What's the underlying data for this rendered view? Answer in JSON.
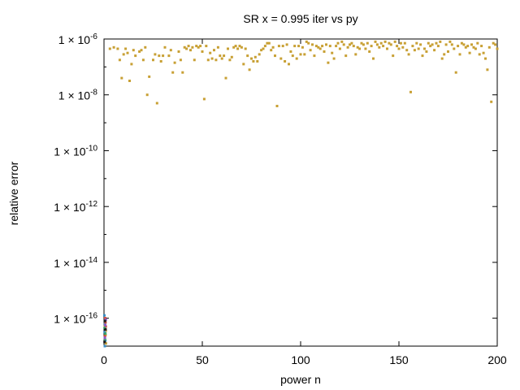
{
  "chart_data": {
    "type": "scatter",
    "title": "SR x = 0.995 iter vs py",
    "xlabel": "power n",
    "ylabel": "relative error",
    "xlim": [
      0,
      200
    ],
    "ylim_log10": [
      -17,
      -6
    ],
    "y_scale": "log",
    "x_ticks": [
      {
        "value": 0,
        "label": "0"
      },
      {
        "value": 50,
        "label": "50"
      },
      {
        "value": 100,
        "label": "100"
      },
      {
        "value": 150,
        "label": "150"
      },
      {
        "value": 200,
        "label": "200"
      }
    ],
    "y_ticks": [
      {
        "exp": -6,
        "label": "1 × 10",
        "sup": "-6"
      },
      {
        "exp": -8,
        "label": "1 × 10",
        "sup": "-8"
      },
      {
        "exp": -10,
        "label": "1 × 10",
        "sup": "-10"
      },
      {
        "exp": -12,
        "label": "1 × 10",
        "sup": "-12"
      },
      {
        "exp": -14,
        "label": "1 × 10",
        "sup": "-14"
      },
      {
        "exp": -16,
        "label": "1 × 10",
        "sup": "-16"
      }
    ],
    "grid": false,
    "legend": "none",
    "series": [
      {
        "color": "#c8a034",
        "points": [
          [
            3,
            -6.35
          ],
          [
            5,
            -6.3
          ],
          [
            7,
            -6.35
          ],
          [
            8,
            -6.75
          ],
          [
            9,
            -7.4
          ],
          [
            10,
            -6.55
          ],
          [
            11,
            -6.35
          ],
          [
            12,
            -6.5
          ],
          [
            13,
            -7.5
          ],
          [
            14,
            -6.9
          ],
          [
            15,
            -6.4
          ],
          [
            16,
            -6.6
          ],
          [
            18,
            -6.45
          ],
          [
            19,
            -6.4
          ],
          [
            20,
            -6.75
          ],
          [
            21,
            -6.3
          ],
          [
            22,
            -8.0
          ],
          [
            23,
            -7.35
          ],
          [
            25,
            -6.75
          ],
          [
            26,
            -6.55
          ],
          [
            27,
            -8.3
          ],
          [
            28,
            -6.6
          ],
          [
            29,
            -6.8
          ],
          [
            30,
            -6.6
          ],
          [
            31,
            -6.3
          ],
          [
            33,
            -6.6
          ],
          [
            34,
            -6.4
          ],
          [
            35,
            -7.2
          ],
          [
            36,
            -6.85
          ],
          [
            38,
            -6.45
          ],
          [
            39,
            -6.75
          ],
          [
            40,
            -7.2
          ],
          [
            41,
            -6.3
          ],
          [
            42,
            -6.35
          ],
          [
            43,
            -6.25
          ],
          [
            44,
            -6.4
          ],
          [
            45,
            -6.3
          ],
          [
            46,
            -6.75
          ],
          [
            47,
            -6.25
          ],
          [
            48,
            -6.3
          ],
          [
            49,
            -6.25
          ],
          [
            50,
            -6.45
          ],
          [
            51,
            -8.15
          ],
          [
            52,
            -6.25
          ],
          [
            53,
            -6.75
          ],
          [
            54,
            -6.5
          ],
          [
            55,
            -6.7
          ],
          [
            56,
            -6.4
          ],
          [
            57,
            -6.75
          ],
          [
            58,
            -6.3
          ],
          [
            59,
            -6.6
          ],
          [
            60,
            -6.7
          ],
          [
            61,
            -6.6
          ],
          [
            62,
            -7.4
          ],
          [
            63,
            -6.35
          ],
          [
            64,
            -6.75
          ],
          [
            65,
            -6.65
          ],
          [
            66,
            -6.3
          ],
          [
            67,
            -6.25
          ],
          [
            68,
            -6.35
          ],
          [
            69,
            -6.25
          ],
          [
            70,
            -6.3
          ],
          [
            71,
            -6.9
          ],
          [
            72,
            -6.35
          ],
          [
            73,
            -6.6
          ],
          [
            74,
            -7.1
          ],
          [
            75,
            -6.7
          ],
          [
            76,
            -6.8
          ],
          [
            77,
            -6.65
          ],
          [
            78,
            -6.8
          ],
          [
            79,
            -6.55
          ],
          [
            80,
            -6.4
          ],
          [
            81,
            -6.35
          ],
          [
            82,
            -6.25
          ],
          [
            83,
            -6.15
          ],
          [
            84,
            -6.15
          ],
          [
            85,
            -6.4
          ],
          [
            86,
            -6.3
          ],
          [
            87,
            -6.6
          ],
          [
            88,
            -8.4
          ],
          [
            89,
            -6.25
          ],
          [
            90,
            -6.7
          ],
          [
            91,
            -6.25
          ],
          [
            92,
            -6.8
          ],
          [
            93,
            -6.2
          ],
          [
            94,
            -6.9
          ],
          [
            95,
            -6.45
          ],
          [
            96,
            -6.6
          ],
          [
            97,
            -6.25
          ],
          [
            98,
            -6.7
          ],
          [
            99,
            -6.25
          ],
          [
            100,
            -6.55
          ],
          [
            101,
            -6.3
          ],
          [
            102,
            -6.55
          ],
          [
            103,
            -6.1
          ],
          [
            104,
            -6.15
          ],
          [
            105,
            -6.4
          ],
          [
            106,
            -6.2
          ],
          [
            107,
            -6.6
          ],
          [
            108,
            -6.25
          ],
          [
            109,
            -6.3
          ],
          [
            110,
            -6.35
          ],
          [
            111,
            -6.25
          ],
          [
            112,
            -6.45
          ],
          [
            113,
            -6.2
          ],
          [
            114,
            -6.85
          ],
          [
            115,
            -6.25
          ],
          [
            116,
            -6.5
          ],
          [
            117,
            -6.7
          ],
          [
            118,
            -6.25
          ],
          [
            119,
            -6.15
          ],
          [
            120,
            -6.35
          ],
          [
            121,
            -6.1
          ],
          [
            122,
            -6.2
          ],
          [
            123,
            -6.6
          ],
          [
            124,
            -6.3
          ],
          [
            125,
            -6.2
          ],
          [
            126,
            -6.15
          ],
          [
            127,
            -6.25
          ],
          [
            128,
            -6.55
          ],
          [
            129,
            -6.3
          ],
          [
            130,
            -6.35
          ],
          [
            131,
            -6.15
          ],
          [
            132,
            -6.2
          ],
          [
            133,
            -6.35
          ],
          [
            134,
            -6.15
          ],
          [
            135,
            -6.45
          ],
          [
            136,
            -6.25
          ],
          [
            137,
            -6.7
          ],
          [
            138,
            -6.1
          ],
          [
            139,
            -6.2
          ],
          [
            140,
            -6.3
          ],
          [
            141,
            -6.15
          ],
          [
            142,
            -6.25
          ],
          [
            143,
            -6.1
          ],
          [
            144,
            -6.35
          ],
          [
            145,
            -6.15
          ],
          [
            146,
            -6.2
          ],
          [
            147,
            -6.6
          ],
          [
            148,
            -6.1
          ],
          [
            149,
            -6.25
          ],
          [
            150,
            -6.35
          ],
          [
            151,
            -6.15
          ],
          [
            152,
            -6.3
          ],
          [
            153,
            -6.15
          ],
          [
            154,
            -6.4
          ],
          [
            155,
            -6.55
          ],
          [
            156,
            -7.9
          ],
          [
            157,
            -6.25
          ],
          [
            158,
            -6.4
          ],
          [
            159,
            -6.15
          ],
          [
            160,
            -6.35
          ],
          [
            161,
            -6.2
          ],
          [
            162,
            -6.6
          ],
          [
            163,
            -6.35
          ],
          [
            164,
            -6.45
          ],
          [
            165,
            -6.15
          ],
          [
            166,
            -6.25
          ],
          [
            167,
            -6.2
          ],
          [
            168,
            -6.4
          ],
          [
            169,
            -6.15
          ],
          [
            170,
            -6.25
          ],
          [
            171,
            -6.1
          ],
          [
            172,
            -6.7
          ],
          [
            173,
            -6.55
          ],
          [
            174,
            -6.2
          ],
          [
            175,
            -6.45
          ],
          [
            176,
            -6.1
          ],
          [
            177,
            -6.2
          ],
          [
            178,
            -6.35
          ],
          [
            179,
            -7.2
          ],
          [
            180,
            -6.25
          ],
          [
            181,
            -6.55
          ],
          [
            182,
            -6.15
          ],
          [
            183,
            -6.2
          ],
          [
            184,
            -6.3
          ],
          [
            185,
            -6.25
          ],
          [
            186,
            -6.5
          ],
          [
            187,
            -6.2
          ],
          [
            188,
            -6.3
          ],
          [
            189,
            -6.35
          ],
          [
            190,
            -6.15
          ],
          [
            191,
            -6.55
          ],
          [
            192,
            -6.25
          ],
          [
            193,
            -6.5
          ],
          [
            194,
            -6.7
          ],
          [
            195,
            -7.1
          ],
          [
            196,
            -6.3
          ],
          [
            197,
            -8.25
          ],
          [
            198,
            -6.15
          ],
          [
            199,
            -6.2
          ],
          [
            200,
            -6.35
          ]
        ]
      },
      {
        "color": "#c8a034",
        "points": [
          [
            0.4,
            -16.3
          ],
          [
            0.8,
            -16.6
          ],
          [
            1.0,
            -16.9
          ],
          [
            0.6,
            -16.1
          ],
          [
            0.9,
            -16.45
          ]
        ]
      },
      {
        "color": "#3a8fc7",
        "points": [
          [
            0.2,
            -15.9
          ],
          [
            0.5,
            -16.2
          ],
          [
            0.3,
            -16.5
          ],
          [
            0.7,
            -16.8
          ],
          [
            0.4,
            -17.0
          ]
        ]
      },
      {
        "color": "#d94b3a",
        "points": [
          [
            0.6,
            -16.0
          ],
          [
            0.9,
            -16.3
          ],
          [
            0.5,
            -16.65
          ],
          [
            0.8,
            -16.15
          ]
        ]
      },
      {
        "color": "#3aa56c",
        "points": [
          [
            0.3,
            -16.35
          ],
          [
            0.7,
            -16.55
          ],
          [
            0.5,
            -16.75
          ]
        ]
      },
      {
        "color": "#8a5ac7",
        "points": [
          [
            0.6,
            -16.25
          ],
          [
            0.4,
            -16.7
          ],
          [
            0.9,
            -16.05
          ]
        ]
      },
      {
        "color": "#1a1a1a",
        "points": [
          [
            0.5,
            -16.1
          ],
          [
            0.8,
            -16.4
          ],
          [
            0.3,
            -16.85
          ]
        ]
      }
    ]
  }
}
